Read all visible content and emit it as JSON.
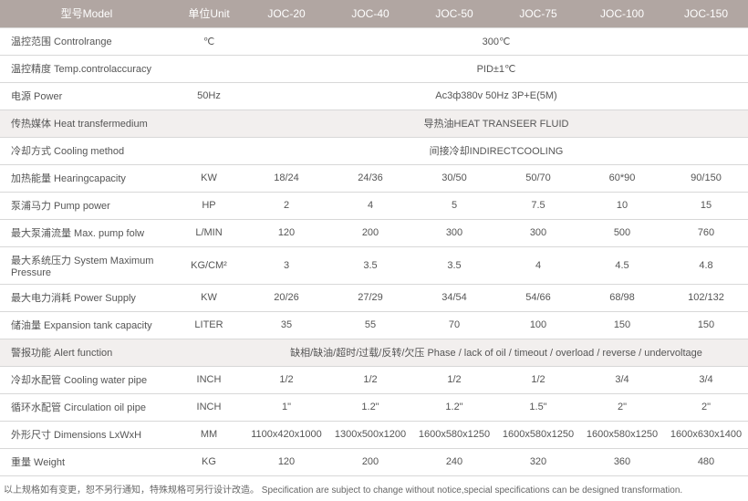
{
  "header": {
    "model": "型号Model",
    "unit": "单位Unit",
    "cols": [
      "JOC-20",
      "JOC-40",
      "JOC-50",
      "JOC-75",
      "JOC-100",
      "JOC-150"
    ]
  },
  "rows": [
    {
      "label": "温控范围 Controlrange",
      "unit": "℃",
      "span": "300℃"
    },
    {
      "label": "温控精度 Temp.controlaccuracy",
      "unit": "",
      "span": "PID±1℃"
    },
    {
      "label": "电源 Power",
      "unit": "50Hz",
      "span": "Ac3ф380v 50Hz 3P+E(5M)"
    },
    {
      "label": "传热媒体 Heat transfermedium",
      "unit": "",
      "span": "导热油HEAT TRANSEER FLUID"
    },
    {
      "label": "冷却方式 Cooling method",
      "unit": "",
      "span": "间接冷却INDIRECTCOOLING"
    },
    {
      "label": "加热能量 Hearingcapacity",
      "unit": "KW",
      "cells": [
        "18/24",
        "24/36",
        "30/50",
        "50/70",
        "60*90",
        "90/150"
      ]
    },
    {
      "label": "泵浦马力 Pump power",
      "unit": "HP",
      "cells": [
        "2",
        "4",
        "5",
        "7.5",
        "10",
        "15"
      ]
    },
    {
      "label": "最大泵浦流量 Max. pump folw",
      "unit": "L/MIN",
      "cells": [
        "120",
        "200",
        "300",
        "300",
        "500",
        "760"
      ]
    },
    {
      "label": "最大系统压力 System Maximum Pressure",
      "unit": "KG/CM²",
      "cells": [
        "3",
        "3.5",
        "3.5",
        "4",
        "4.5",
        "4.8"
      ]
    },
    {
      "label": "最大电力消耗 Power Supply",
      "unit": "KW",
      "cells": [
        "20/26",
        "27/29",
        "34/54",
        "54/66",
        "68/98",
        "102/132"
      ]
    },
    {
      "label": "储油量 Expansion tank capacity",
      "unit": "LITER",
      "cells": [
        "35",
        "55",
        "70",
        "100",
        "150",
        "150"
      ]
    },
    {
      "label": "警报功能 Alert function",
      "unit": "",
      "span": "缺相/缺油/超时/过载/反转/欠压 Phase / lack of oil / timeout / overload / reverse / undervoltage"
    },
    {
      "label": "冷却水配管 Cooling water pipe",
      "unit": "INCH",
      "cells": [
        "1/2",
        "1/2",
        "1/2",
        "1/2",
        "3/4",
        "3/4"
      ]
    },
    {
      "label": "循环水配管 Circulation oil pipe",
      "unit": "INCH",
      "cells": [
        "1\"",
        "1.2\"",
        "1.2\"",
        "1.5\"",
        "2\"",
        "2\""
      ]
    },
    {
      "label": "外形尺寸 Dimensions LxWxH",
      "unit": "MM",
      "cells": [
        "1100x420x1000",
        "1300x500x1200",
        "1600x580x1250",
        "1600x580x1250",
        "1600x580x1250",
        "1600x630x1400"
      ]
    },
    {
      "label": "重量 Weight",
      "unit": "KG",
      "cells": [
        "120",
        "200",
        "240",
        "320",
        "360",
        "480"
      ]
    }
  ],
  "footnote": "以上规格如有变更，恕不另行通知，特殊规格可另行设计改造。 Specification are subject to change without notice,special specifications can be designed transformation."
}
